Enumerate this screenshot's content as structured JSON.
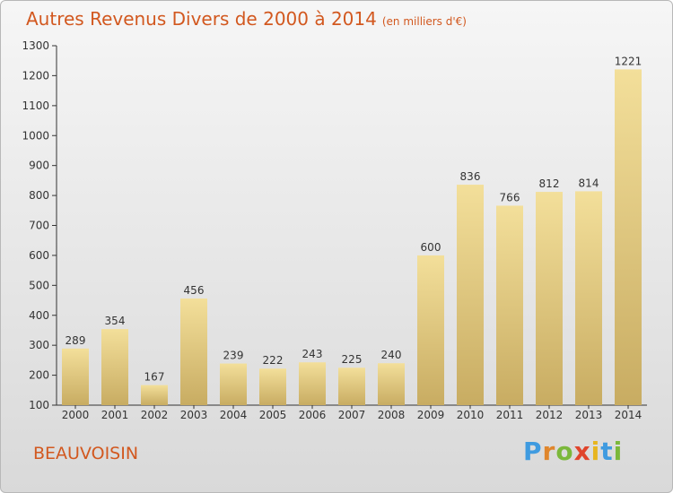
{
  "title": "Autres Revenus Divers de 2000 à 2014",
  "unit": "(en milliers d'€)",
  "place": "BEAUVOISIN",
  "logo": {
    "letters": [
      "P",
      "r",
      "o",
      "x",
      "i",
      "t",
      "i"
    ]
  },
  "colors": {
    "title": "#d2581f",
    "bar_top": "#f3df9a",
    "bar_bottom": "#c8ac62"
  },
  "chart_data": {
    "type": "bar",
    "title": "Autres Revenus Divers de 2000 à 2014",
    "subtitle": "(en milliers d'€)",
    "categories": [
      "2000",
      "2001",
      "2002",
      "2003",
      "2004",
      "2005",
      "2006",
      "2007",
      "2008",
      "2009",
      "2010",
      "2011",
      "2012",
      "2013",
      "2014"
    ],
    "values": [
      289,
      354,
      167,
      456,
      239,
      222,
      243,
      225,
      240,
      600,
      836,
      766,
      812,
      814,
      1221
    ],
    "ylim": [
      100,
      1300
    ],
    "yticks": [
      100,
      200,
      300,
      400,
      500,
      600,
      700,
      800,
      900,
      1000,
      1100,
      1200,
      1300
    ],
    "grid": false,
    "xlabel": "",
    "ylabel": ""
  }
}
